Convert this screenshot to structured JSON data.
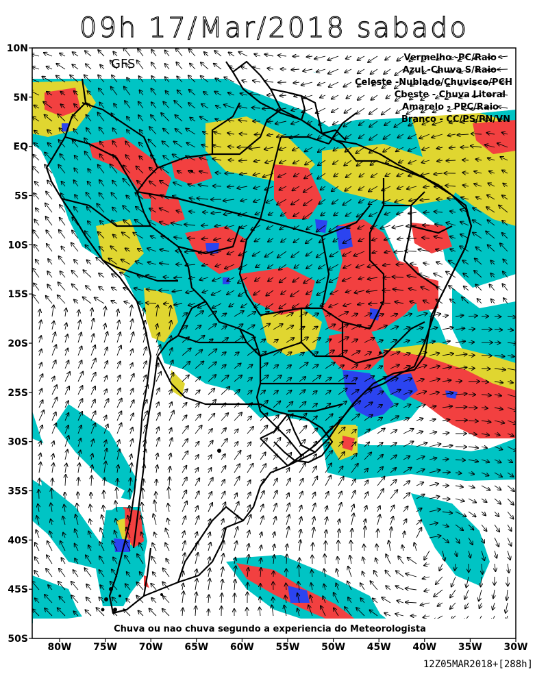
{
  "title": "09h 17/Mar/2018 sabado",
  "model_label": "GFS",
  "legend": [
    {
      "text": "Vermelho -PC/Raio"
    },
    {
      "text": "Azul -Chuva S/Raio"
    },
    {
      "text": "Celeste -Nublado/Chuvisco/PCH"
    },
    {
      "text": "Cbeste - Chuva Litoral"
    },
    {
      "text": "Amarelo - PPC/Raio"
    },
    {
      "text": "Branco - CC/PS/PN/VN"
    }
  ],
  "caption": "Chuva ou nao chuva segundo a experiencia do Meteorologista",
  "stamp": "12Z05MAR2018+[288h]",
  "lat_labels": [
    "10N",
    "5N",
    "EQ",
    "5S",
    "10S",
    "15S",
    "20S",
    "25S",
    "30S",
    "35S",
    "40S",
    "45S",
    "50S"
  ],
  "lon_labels": [
    "80W",
    "75W",
    "70W",
    "65W",
    "60W",
    "55W",
    "50W",
    "45W",
    "40W",
    "35W",
    "30W"
  ],
  "colors": {
    "red": "#f24040",
    "blue": "#2b44f0",
    "cyan": "#00c4c4",
    "yellow": "#e0d630",
    "white": "#ffffff"
  }
}
